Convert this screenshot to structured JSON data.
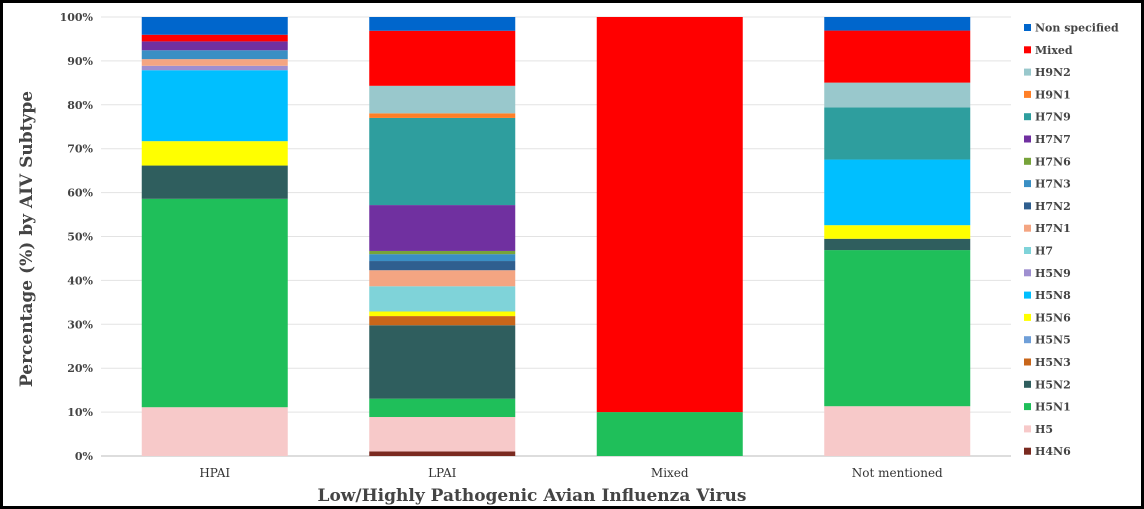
{
  "chart_data": {
    "type": "bar",
    "stacked": true,
    "normalized_percent": true,
    "title": "",
    "xlabel": "Low/Highly Pathogenic Avian Influenza Virus",
    "ylabel": "Percentage (%) by AIV Subtype",
    "ylim": [
      0,
      100
    ],
    "yticks": [
      "0%",
      "10%",
      "20%",
      "30%",
      "40%",
      "50%",
      "60%",
      "70%",
      "80%",
      "90%",
      "100%"
    ],
    "categories": [
      "HPAI",
      "LPAI",
      "Mixed",
      "Not mentioned"
    ],
    "legend_position": "right",
    "series": [
      {
        "name": "H4N6",
        "color": "#7a2a20",
        "values": [
          0,
          1,
          0,
          0
        ]
      },
      {
        "name": "H5",
        "color": "#f7c9c9",
        "values": [
          11,
          7.5,
          0,
          11
        ]
      },
      {
        "name": "H5N1",
        "color": "#1fbf5a",
        "values": [
          47,
          4,
          10,
          34.5
        ]
      },
      {
        "name": "H5N2",
        "color": "#2f5e5e",
        "values": [
          7.5,
          16,
          0,
          2.5
        ]
      },
      {
        "name": "H5N3",
        "color": "#c8661a",
        "values": [
          0,
          2,
          0,
          0
        ]
      },
      {
        "name": "H5N5",
        "color": "#6f9fd8",
        "values": [
          0,
          0,
          0,
          0
        ]
      },
      {
        "name": "H5N6",
        "color": "#ffff00",
        "values": [
          5.5,
          1,
          0,
          3
        ]
      },
      {
        "name": "H5N8",
        "color": "#00bfff",
        "values": [
          16,
          0,
          0,
          14.5
        ]
      },
      {
        "name": "H5N9",
        "color": "#9f8fd0",
        "values": [
          1,
          0,
          0,
          0
        ]
      },
      {
        "name": "H7",
        "color": "#7fd3d9",
        "values": [
          0,
          5.5,
          0,
          0
        ]
      },
      {
        "name": "H7N1",
        "color": "#f4a582",
        "values": [
          1.5,
          3.5,
          0,
          0
        ]
      },
      {
        "name": "H7N2",
        "color": "#2f5f8f",
        "values": [
          0,
          2,
          0,
          0
        ]
      },
      {
        "name": "H7N3",
        "color": "#3a8fc4",
        "values": [
          2,
          1.5,
          0,
          0
        ]
      },
      {
        "name": "H7N6",
        "color": "#77a33a",
        "values": [
          0,
          0.7,
          0,
          0
        ]
      },
      {
        "name": "H7N7",
        "color": "#7030a0",
        "values": [
          2,
          10,
          0,
          0
        ]
      },
      {
        "name": "H7N9",
        "color": "#2e9e9e",
        "values": [
          0,
          19,
          0,
          11.5
        ]
      },
      {
        "name": "H9N1",
        "color": "#ff7f27",
        "values": [
          0,
          1,
          0,
          0
        ]
      },
      {
        "name": "H9N2",
        "color": "#99c8cc",
        "values": [
          0,
          6,
          0,
          5.5
        ]
      },
      {
        "name": "Mixed",
        "color": "#ff0000",
        "values": [
          1.5,
          12,
          90,
          11.5
        ]
      },
      {
        "name": "Non specified",
        "color": "#0066cc",
        "values": [
          4,
          3,
          0,
          3
        ]
      }
    ]
  }
}
